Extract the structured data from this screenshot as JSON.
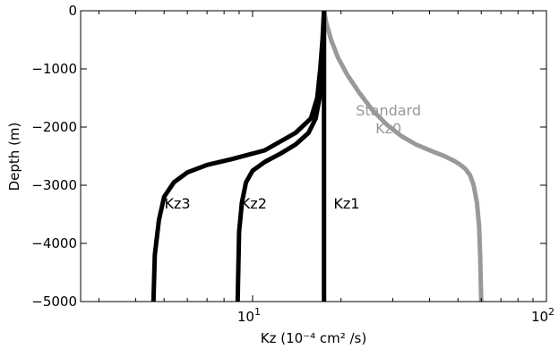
{
  "chart_data": {
    "type": "line",
    "xlabel": "Kz (10⁻⁴ cm² /s)",
    "ylabel": "Depth (m)",
    "xscale": "log",
    "xlim": [
      2.6,
      100
    ],
    "ylim": [
      -5000,
      0
    ],
    "x_ticks": [
      {
        "value": 10,
        "base": "10",
        "exp": "1"
      },
      {
        "value": 100,
        "base": "10",
        "exp": "2"
      }
    ],
    "y_ticks": [
      {
        "value": 0,
        "label": "0"
      },
      {
        "value": -1000,
        "label": "−1000"
      },
      {
        "value": -2000,
        "label": "−2000"
      },
      {
        "value": -3000,
        "label": "−3000"
      },
      {
        "value": -4000,
        "label": "−4000"
      },
      {
        "value": -5000,
        "label": "−5000"
      }
    ],
    "grid": false,
    "series": [
      {
        "id": "kz0",
        "color": "#999999",
        "points": [
          [
            17.5,
            0
          ],
          [
            17.8,
            -200
          ],
          [
            18.5,
            -500
          ],
          [
            19.5,
            -800
          ],
          [
            21,
            -1100
          ],
          [
            23,
            -1400
          ],
          [
            25.5,
            -1700
          ],
          [
            28.5,
            -1950
          ],
          [
            32,
            -2150
          ],
          [
            36,
            -2300
          ],
          [
            41,
            -2420
          ],
          [
            45,
            -2500
          ],
          [
            48.5,
            -2580
          ],
          [
            51,
            -2650
          ],
          [
            53,
            -2720
          ],
          [
            55,
            -2830
          ],
          [
            56.5,
            -3000
          ],
          [
            58,
            -3300
          ],
          [
            59,
            -3700
          ],
          [
            59.5,
            -4200
          ],
          [
            60,
            -5000
          ]
        ]
      },
      {
        "id": "kz1",
        "color": "#000000",
        "points": [
          [
            17.5,
            0
          ],
          [
            17.5,
            -5000
          ]
        ]
      },
      {
        "id": "kz2",
        "color": "#000000",
        "points": [
          [
            17.5,
            0
          ],
          [
            17.4,
            -500
          ],
          [
            17.2,
            -1000
          ],
          [
            16.9,
            -1500
          ],
          [
            16.4,
            -1850
          ],
          [
            15.5,
            -2100
          ],
          [
            14,
            -2300
          ],
          [
            12.5,
            -2450
          ],
          [
            11,
            -2600
          ],
          [
            10,
            -2750
          ],
          [
            9.5,
            -2950
          ],
          [
            9.2,
            -3300
          ],
          [
            9,
            -3800
          ],
          [
            8.95,
            -4400
          ],
          [
            8.9,
            -5000
          ]
        ]
      },
      {
        "id": "kz3",
        "color": "#000000",
        "points": [
          [
            17.5,
            0
          ],
          [
            17.3,
            -500
          ],
          [
            17,
            -1000
          ],
          [
            16.6,
            -1500
          ],
          [
            15.8,
            -1850
          ],
          [
            14,
            -2100
          ],
          [
            11,
            -2400
          ],
          [
            8.5,
            -2550
          ],
          [
            7,
            -2650
          ],
          [
            6,
            -2780
          ],
          [
            5.4,
            -2950
          ],
          [
            5,
            -3200
          ],
          [
            4.8,
            -3600
          ],
          [
            4.65,
            -4200
          ],
          [
            4.6,
            -5000
          ]
        ]
      }
    ],
    "annotations": [
      {
        "id": "kz3",
        "lines": [
          "Kz3"
        ],
        "x": 5.55,
        "y": -3400,
        "color": "#000000"
      },
      {
        "id": "kz2",
        "lines": [
          "Kz2"
        ],
        "x": 10.1,
        "y": -3400,
        "color": "#000000"
      },
      {
        "id": "kz1",
        "lines": [
          "Kz1"
        ],
        "x": 20.9,
        "y": -3400,
        "color": "#000000"
      },
      {
        "id": "kz0",
        "lines": [
          "Standard",
          "Kz0"
        ],
        "x": 29,
        "y": -1800,
        "color": "#999999"
      }
    ]
  }
}
